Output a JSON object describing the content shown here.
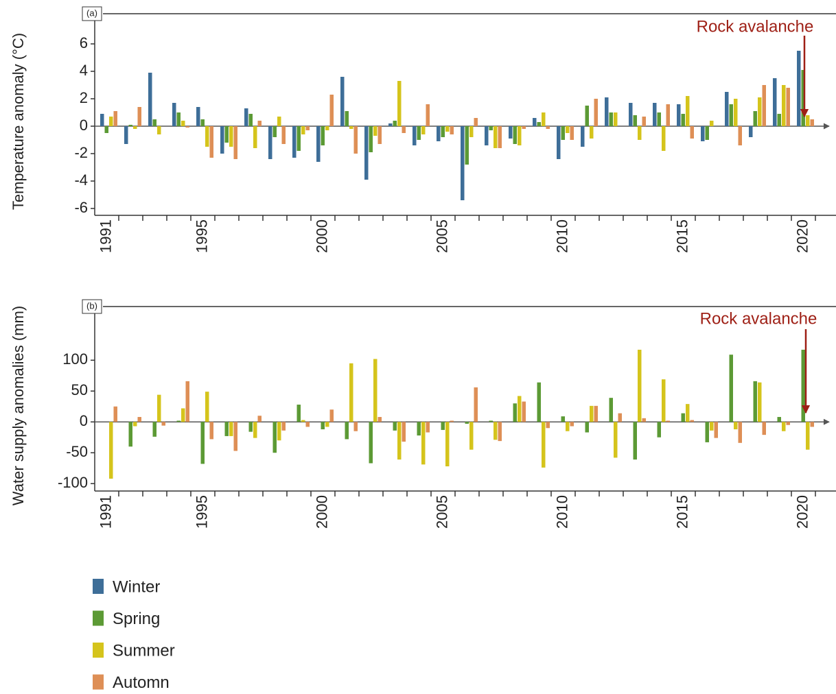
{
  "chart_data": [
    {
      "type": "bar",
      "panel_label": "(a)",
      "ylabel": "Temperature anomaly (°C)",
      "annotation": "Rock avalanche",
      "categories": [
        "1991",
        null,
        null,
        null,
        "1995",
        null,
        null,
        null,
        null,
        "2000",
        null,
        null,
        null,
        null,
        "2005",
        null,
        null,
        null,
        null,
        "2010",
        null,
        null,
        null,
        null,
        "2015",
        null,
        null,
        null,
        null,
        "2020"
      ],
      "series": [
        {
          "name": "Winter",
          "color": "#3e6e98",
          "values": [
            0.9,
            -1.3,
            3.9,
            1.7,
            1.4,
            -2.0,
            1.3,
            -2.4,
            -2.3,
            -2.6,
            3.6,
            -3.9,
            0.2,
            -1.4,
            -1.1,
            -5.4,
            -1.4,
            -0.9,
            0.6,
            -2.4,
            -1.5,
            2.1,
            1.7,
            1.7,
            1.6,
            -1.1,
            2.5,
            -0.8,
            3.5,
            5.5
          ]
        },
        {
          "name": "Spring",
          "color": "#5c9a35",
          "values": [
            -0.5,
            0.1,
            0.5,
            1.0,
            0.5,
            -1.2,
            0.9,
            -0.8,
            -1.8,
            -1.4,
            1.1,
            -1.9,
            0.4,
            -1.0,
            -0.8,
            -2.8,
            -0.3,
            -1.3,
            0.3,
            -1.0,
            1.5,
            1.0,
            0.8,
            1.0,
            0.9,
            -1.0,
            1.6,
            1.1,
            0.9,
            4.1
          ]
        },
        {
          "name": "Summer",
          "color": "#d5c41c",
          "values": [
            0.7,
            -0.2,
            -0.6,
            0.4,
            -1.5,
            -1.5,
            -1.6,
            0.7,
            -0.6,
            -0.3,
            -0.2,
            -0.7,
            3.3,
            -0.6,
            -0.4,
            -0.8,
            -1.6,
            -1.4,
            1.0,
            -0.5,
            -0.9,
            1.0,
            -1.0,
            -1.8,
            2.2,
            0.4,
            2.0,
            2.1,
            3.0,
            0.8
          ]
        },
        {
          "name": "Automn",
          "color": "#de8f56",
          "values": [
            1.1,
            1.4,
            0,
            -0.1,
            -2.3,
            -2.4,
            0.4,
            -1.3,
            -0.3,
            2.3,
            -2.0,
            -1.3,
            -0.5,
            1.6,
            -0.6,
            0.6,
            -1.6,
            -0.2,
            -0.2,
            -1.0,
            2.0,
            0,
            0.7,
            1.6,
            -0.9,
            0,
            -1.4,
            3.0,
            2.8,
            0.5
          ]
        }
      ],
      "ylim": [
        -6.5,
        8.2
      ],
      "yticks": [
        -6,
        -4,
        -2,
        0,
        2,
        4,
        6
      ]
    },
    {
      "type": "bar",
      "panel_label": "(b)",
      "ylabel": "Water supply anomalies (mm)",
      "annotation": "Rock avalanche",
      "categories": [
        "1991",
        null,
        null,
        null,
        "1995",
        null,
        null,
        null,
        null,
        "2000",
        null,
        null,
        null,
        null,
        "2005",
        null,
        null,
        null,
        null,
        "2010",
        null,
        null,
        null,
        null,
        "2015",
        null,
        null,
        null,
        null,
        "2020"
      ],
      "series": [
        {
          "name": "Spring",
          "color": "#5c9a35",
          "values": [
            0,
            -40,
            -24,
            2,
            -68,
            -23,
            -16,
            -50,
            28,
            -12,
            -28,
            -67,
            -14,
            -22,
            -13,
            -3,
            2,
            30,
            64,
            9,
            -17,
            39,
            -61,
            -25,
            14,
            -33,
            109,
            66,
            8,
            117
          ]
        },
        {
          "name": "Summer",
          "color": "#d5c41c",
          "values": [
            -92,
            -7,
            44,
            22,
            49,
            -23,
            -26,
            -30,
            3,
            -8,
            95,
            102,
            -61,
            -69,
            -72,
            -45,
            -29,
            42,
            -74,
            -15,
            26,
            -58,
            117,
            69,
            29,
            -14,
            -12,
            64,
            -15,
            -45
          ]
        },
        {
          "name": "Automn",
          "color": "#de8f56",
          "values": [
            25,
            8,
            -6,
            66,
            -28,
            -47,
            10,
            -14,
            -8,
            20,
            -15,
            8,
            -32,
            -17,
            2,
            56,
            -31,
            33,
            -10,
            -7,
            26,
            14,
            6,
            2,
            3,
            -26,
            -34,
            -21,
            -5,
            -8
          ]
        }
      ],
      "ylim": [
        -112,
        187
      ],
      "yticks": [
        -100,
        -50,
        0,
        50,
        100
      ]
    }
  ]
}
